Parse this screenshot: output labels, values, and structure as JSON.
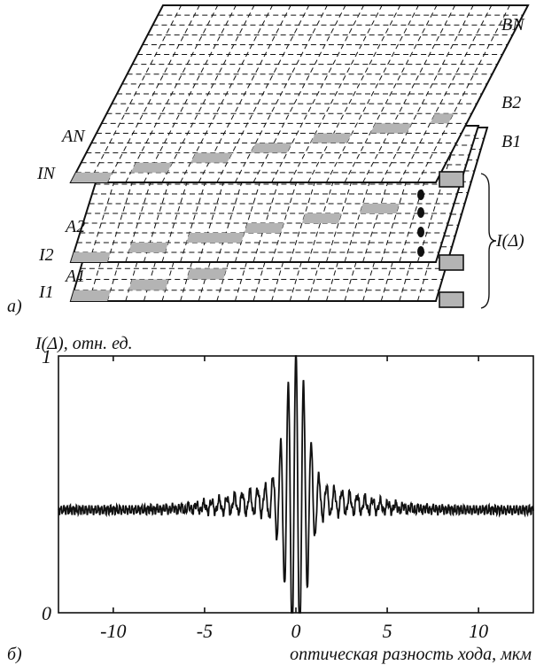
{
  "panel_a": {
    "panel_label": "а)",
    "labels": {
      "BN": "BN",
      "B2": "B2",
      "B1": "B1",
      "AN": "AN",
      "A2": "A2",
      "A1": "A1",
      "IN": "IN",
      "I2": "I2",
      "I1": "I1",
      "I_delta": "I(Δ)"
    }
  },
  "panel_b": {
    "panel_label": "б)",
    "ylabel": "I(Δ), отн. ед.",
    "xlabel": "оптическая разность хода, мкм",
    "xticks": [
      "-10",
      "-5",
      "0",
      "5",
      "10"
    ],
    "yticks": [
      "0",
      "1"
    ]
  },
  "chart_data": {
    "type": "line",
    "title": "",
    "xlabel": "оптическая разность хода, мкм",
    "ylabel": "I(Δ), отн. ед.",
    "xlim": [
      -13,
      13
    ],
    "ylim": [
      0,
      1
    ],
    "x_ticks": [
      -10,
      -5,
      0,
      5,
      10
    ],
    "y_ticks": [
      0,
      1
    ],
    "baseline": 0.4,
    "series": [
      {
        "x": [
          -13,
          -12,
          -11,
          -10,
          -9,
          -8,
          -7,
          -6,
          -5,
          -4,
          -3,
          -2,
          -1.5,
          -1,
          -0.8,
          -0.6,
          -0.4,
          -0.2,
          0,
          0.2,
          0.4,
          0.6,
          0.8,
          1,
          1.5,
          2,
          3,
          4,
          5,
          6,
          7,
          8,
          9,
          10,
          11,
          12,
          13
        ],
        "y": [
          0.4,
          0.4,
          0.4,
          0.39,
          0.4,
          0.41,
          0.42,
          0.43,
          0.43,
          0.44,
          0.45,
          0.47,
          0.56,
          0.34,
          0.68,
          0.22,
          0.83,
          0.14,
          0.93,
          0.16,
          0.82,
          0.24,
          0.67,
          0.35,
          0.57,
          0.48,
          0.45,
          0.44,
          0.43,
          0.43,
          0.42,
          0.41,
          0.4,
          0.4,
          0.39,
          0.4,
          0.41
        ]
      }
    ],
    "grid": false,
    "legend": "none"
  }
}
